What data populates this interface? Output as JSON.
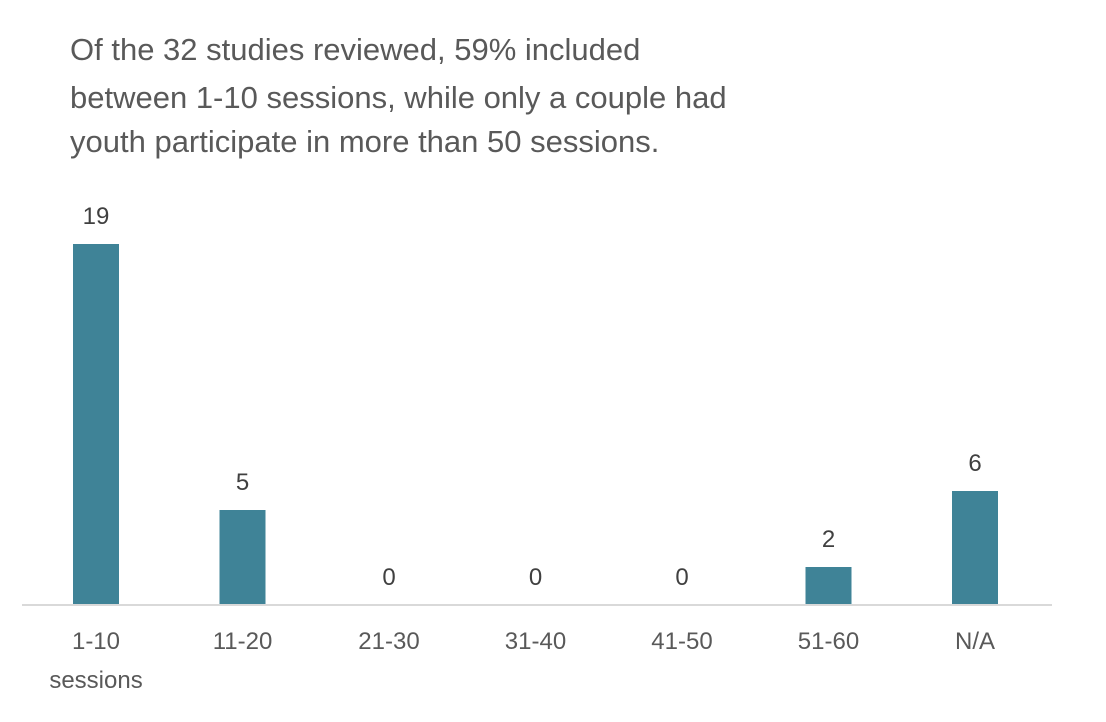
{
  "chart_data": {
    "type": "bar",
    "title": [
      "Of the 32 studies reviewed, 59% included",
      "between 1-10 sessions, while only a couple had",
      "youth participate in more than 50 sessions."
    ],
    "categories": [
      [
        "1-10",
        "sessions"
      ],
      [
        "11-20"
      ],
      [
        "21-30"
      ],
      [
        "31-40"
      ],
      [
        "41-50"
      ],
      [
        "51-60"
      ],
      [
        "N/A"
      ]
    ],
    "values": [
      19,
      5,
      0,
      0,
      0,
      2,
      6
    ],
    "data_labels": true,
    "xlabel": "",
    "ylabel": "",
    "ylim": [
      0,
      20
    ],
    "grid": false,
    "legend": false,
    "bar_color": "#3f8397",
    "axis_color": "#d9d9d9"
  }
}
